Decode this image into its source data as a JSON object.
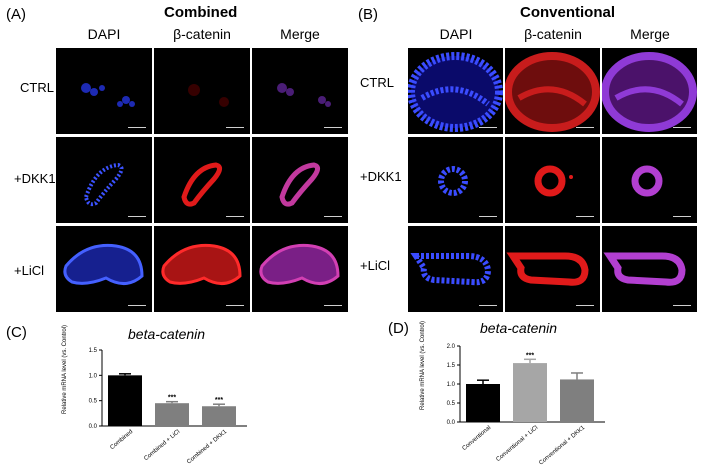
{
  "panel_a": {
    "letter": "(A)",
    "title": "Combined",
    "columns": [
      "DAPI",
      "β-catenin",
      "Merge"
    ],
    "rows": [
      "CTRL",
      "+DKK1",
      "+LiCl"
    ]
  },
  "panel_b": {
    "letter": "(B)",
    "title": "Conventional",
    "columns": [
      "DAPI",
      "β-catenin",
      "Merge"
    ],
    "rows": [
      "CTRL",
      "+DKK1",
      "+LiCl"
    ]
  },
  "panel_c": {
    "letter": "(C)",
    "chart_data": {
      "type": "bar",
      "title": "beta-catenin",
      "ylabel": "Relative mRNA level (vs. Control)",
      "categories": [
        "Combined",
        "Combined + LiCl",
        "Combined + DKK1"
      ],
      "values": [
        1.0,
        0.45,
        0.39
      ],
      "errors": [
        0.03,
        0.03,
        0.04
      ],
      "significance": [
        "",
        "***",
        "***"
      ],
      "ylim": [
        0,
        1.5
      ],
      "yticks": [
        "0.0",
        "0.5",
        "1.0",
        "1.5"
      ],
      "colors": [
        "#000000",
        "#7f7f7f",
        "#7f7f7f"
      ]
    }
  },
  "panel_d": {
    "letter": "(D)",
    "chart_data": {
      "type": "bar",
      "title": "beta-catenin",
      "ylabel": "Relative mRNA level (vs. Control)",
      "categories": [
        "Conventional",
        "Conventional + LiCl",
        "Conventional + DKK1"
      ],
      "values": [
        1.0,
        1.55,
        1.12
      ],
      "errors": [
        0.1,
        0.1,
        0.17
      ],
      "significance": [
        "",
        "***",
        ""
      ],
      "ylim": [
        0,
        2.0
      ],
      "yticks": [
        "0.0",
        "0.5",
        "1.0",
        "1.5",
        "2.0"
      ],
      "colors": [
        "#000000",
        "#a6a6a6",
        "#7f7f7f"
      ]
    }
  }
}
